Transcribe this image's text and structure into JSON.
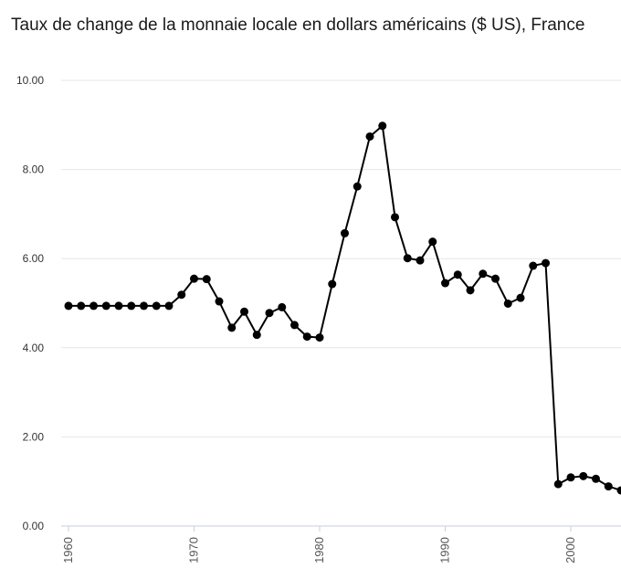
{
  "chart_data": {
    "type": "line",
    "title": "Taux de change de la monnaie locale en dollars américains ($ US), France",
    "xlabel": "",
    "ylabel": "",
    "ylim": [
      0,
      10
    ],
    "yticks": [
      "0.00",
      "2.00",
      "4.00",
      "6.00",
      "8.00",
      "10.00"
    ],
    "ytick_values": [
      0,
      2,
      4,
      6,
      8,
      10
    ],
    "xticks": [
      "1960",
      "1970",
      "1980",
      "1990",
      "2000"
    ],
    "xtick_values": [
      1960,
      1970,
      1980,
      1990,
      2000
    ],
    "grid": "horizontal",
    "series": [
      {
        "name": "France",
        "color": "#000000",
        "x": [
          1960,
          1961,
          1962,
          1963,
          1964,
          1965,
          1966,
          1967,
          1968,
          1969,
          1970,
          1971,
          1972,
          1973,
          1974,
          1975,
          1976,
          1977,
          1978,
          1979,
          1980,
          1981,
          1982,
          1983,
          1984,
          1985,
          1986,
          1987,
          1988,
          1989,
          1990,
          1991,
          1992,
          1993,
          1994,
          1995,
          1996,
          1997,
          1998,
          1999,
          2000,
          2001,
          2002,
          2003,
          2004
        ],
        "values": [
          4.94,
          4.94,
          4.94,
          4.94,
          4.94,
          4.94,
          4.94,
          4.94,
          4.94,
          5.19,
          5.55,
          5.54,
          5.04,
          4.45,
          4.81,
          4.29,
          4.78,
          4.91,
          4.51,
          4.25,
          4.23,
          5.43,
          6.57,
          7.62,
          8.74,
          8.98,
          6.93,
          6.01,
          5.96,
          6.38,
          5.45,
          5.64,
          5.29,
          5.66,
          5.55,
          4.99,
          5.12,
          5.84,
          5.9,
          0.94,
          1.09,
          1.12,
          1.06,
          0.89,
          0.8
        ]
      }
    ]
  }
}
